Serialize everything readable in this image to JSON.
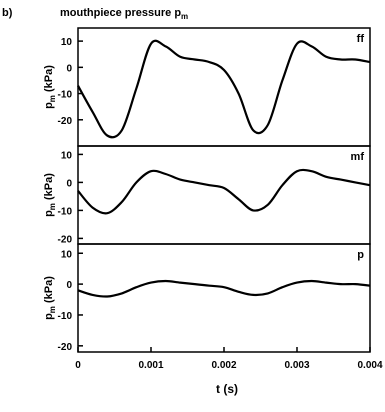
{
  "figure": {
    "panel_letter": "b)",
    "title": "mouthpiece pressure p",
    "title_subscript": "m",
    "xlabel": "t (s)"
  },
  "chart_data": [
    {
      "type": "line",
      "panel_tag": "ff",
      "ylabel": "p",
      "ylabel_subscript": "m",
      "ylabel_unit": " (kPa)",
      "ylim": [
        -30,
        15
      ],
      "yticks": [
        10,
        0,
        -10,
        -20
      ],
      "ytick_labels": [
        "10",
        "0",
        "-10",
        "-20"
      ],
      "xlim": [
        0,
        0.004
      ],
      "x": [
        0,
        0.0002,
        0.0004,
        0.0006,
        0.0008,
        0.001,
        0.0012,
        0.0014,
        0.0016,
        0.0018,
        0.002,
        0.0022,
        0.0024,
        0.0026,
        0.0028,
        0.003,
        0.0032,
        0.0034,
        0.0036,
        0.0038,
        0.004
      ],
      "series": [
        {
          "values": [
            -7,
            -17,
            -26,
            -24,
            -8,
            9,
            8,
            4,
            3,
            2,
            -1,
            -10,
            -24,
            -22,
            -5,
            9,
            8,
            4,
            3,
            3,
            2
          ]
        }
      ]
    },
    {
      "type": "line",
      "panel_tag": "mf",
      "ylabel": "p",
      "ylabel_subscript": "m",
      "ylabel_unit": " (kPa)",
      "ylim": [
        -22,
        13
      ],
      "yticks": [
        10,
        0,
        -10,
        -20
      ],
      "ytick_labels": [
        "10",
        "0",
        "-10",
        "-20"
      ],
      "xlim": [
        0,
        0.004
      ],
      "x": [
        0,
        0.0002,
        0.0004,
        0.0006,
        0.0008,
        0.001,
        0.0012,
        0.0014,
        0.0016,
        0.0018,
        0.002,
        0.0022,
        0.0024,
        0.0026,
        0.0028,
        0.003,
        0.0032,
        0.0034,
        0.0036,
        0.0038,
        0.004
      ],
      "series": [
        {
          "values": [
            -3,
            -9,
            -11,
            -7,
            0,
            4,
            3,
            1,
            0,
            -1,
            -2,
            -6,
            -10,
            -8,
            -1,
            4,
            4,
            2,
            1,
            0,
            -1
          ]
        }
      ]
    },
    {
      "type": "line",
      "panel_tag": "p",
      "ylabel": "p",
      "ylabel_subscript": "m",
      "ylabel_unit": " (kPa)",
      "ylim": [
        -22,
        13
      ],
      "yticks": [
        10,
        0,
        -10,
        -20
      ],
      "ytick_labels": [
        "10",
        "0",
        "-10",
        "-20"
      ],
      "xlim": [
        0,
        0.004
      ],
      "xticks": [
        0,
        0.001,
        0.002,
        0.003,
        0.004
      ],
      "xtick_labels": [
        "0",
        "0.001",
        "0.002",
        "0.003",
        "0.004"
      ],
      "x": [
        0,
        0.0002,
        0.0004,
        0.0006,
        0.0008,
        0.001,
        0.0012,
        0.0014,
        0.0016,
        0.0018,
        0.002,
        0.0022,
        0.0024,
        0.0026,
        0.0028,
        0.003,
        0.0032,
        0.0034,
        0.0036,
        0.0038,
        0.004
      ],
      "series": [
        {
          "values": [
            -2,
            -3.5,
            -4,
            -3,
            -1,
            0.5,
            1,
            0.5,
            0,
            -0.5,
            -1,
            -2.5,
            -3.5,
            -3,
            -1,
            0.5,
            1,
            0.5,
            0,
            0,
            -0.5
          ]
        }
      ]
    }
  ]
}
